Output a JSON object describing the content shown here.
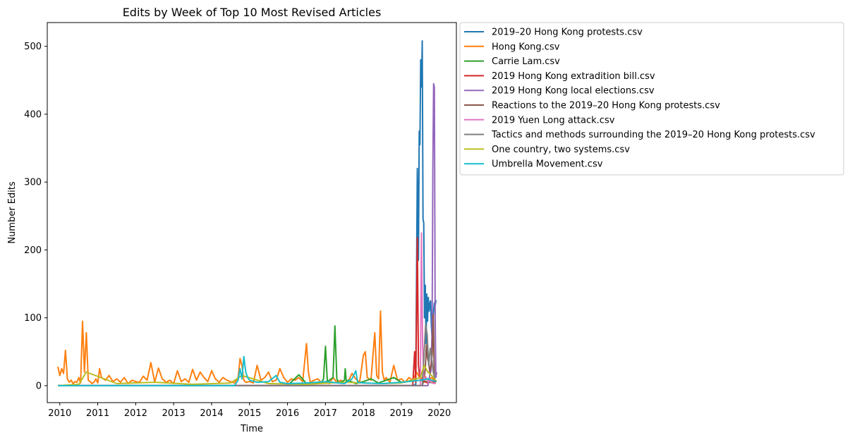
{
  "chart_data": {
    "type": "line",
    "title": "Edits by Week of Top 10 Most Revised Articles",
    "xlabel": "Time",
    "ylabel": "Number Edits",
    "xlim": [
      2009.67,
      2020.45
    ],
    "ylim": [
      -25,
      535
    ],
    "x_ticks": [
      2010,
      2011,
      2012,
      2013,
      2014,
      2015,
      2016,
      2017,
      2018,
      2019,
      2020
    ],
    "y_ticks": [
      0,
      100,
      200,
      300,
      400,
      500
    ],
    "grid": false,
    "legend_position": "outside-right",
    "series": [
      {
        "name": "2019–20 Hong Kong protests.csv",
        "color": "#1f77b4",
        "x": [
          2019.3,
          2019.38,
          2019.42,
          2019.45,
          2019.47,
          2019.49,
          2019.51,
          2019.53,
          2019.55,
          2019.57,
          2019.59,
          2019.61,
          2019.63,
          2019.65,
          2019.67,
          2019.69,
          2019.71,
          2019.73,
          2019.75,
          2019.77,
          2019.79,
          2019.81,
          2019.83,
          2019.85,
          2019.87,
          2019.89,
          2019.91,
          2019.93
        ],
        "y": [
          0,
          2,
          320,
          185,
          375,
          355,
          480,
          440,
          508,
          245,
          240,
          100,
          148,
          62,
          135,
          95,
          130,
          110,
          120,
          125,
          88,
          70,
          95,
          110,
          122,
          118,
          125,
          125
        ]
      },
      {
        "name": "Hong Kong.csv",
        "color": "#ff7f0e",
        "x": [
          2009.95,
          2010.0,
          2010.05,
          2010.1,
          2010.15,
          2010.2,
          2010.25,
          2010.3,
          2010.35,
          2010.4,
          2010.45,
          2010.5,
          2010.55,
          2010.6,
          2010.65,
          2010.7,
          2010.75,
          2010.8,
          2010.85,
          2010.9,
          2010.95,
          2011.0,
          2011.05,
          2011.1,
          2011.2,
          2011.3,
          2011.4,
          2011.5,
          2011.6,
          2011.7,
          2011.8,
          2011.9,
          2012.0,
          2012.1,
          2012.2,
          2012.3,
          2012.4,
          2012.5,
          2012.6,
          2012.7,
          2012.8,
          2012.9,
          2013.0,
          2013.1,
          2013.2,
          2013.3,
          2013.4,
          2013.5,
          2013.6,
          2013.7,
          2013.8,
          2013.9,
          2014.0,
          2014.1,
          2014.2,
          2014.3,
          2014.4,
          2014.5,
          2014.6,
          2014.7,
          2014.75,
          2014.8,
          2014.85,
          2014.9,
          2015.0,
          2015.1,
          2015.2,
          2015.3,
          2015.4,
          2015.5,
          2015.6,
          2015.7,
          2015.8,
          2015.9,
          2016.0,
          2016.1,
          2016.2,
          2016.3,
          2016.4,
          2016.5,
          2016.55,
          2016.6,
          2016.7,
          2016.8,
          2016.9,
          2017.0,
          2017.1,
          2017.2,
          2017.3,
          2017.4,
          2017.5,
          2017.6,
          2017.7,
          2017.8,
          2017.9,
          2018.0,
          2018.05,
          2018.1,
          2018.2,
          2018.3,
          2018.35,
          2018.4,
          2018.45,
          2018.5,
          2018.55,
          2018.6,
          2018.7,
          2018.8,
          2018.9,
          2019.0,
          2019.1,
          2019.2,
          2019.3,
          2019.4,
          2019.5,
          2019.6,
          2019.7,
          2019.8,
          2019.9
        ],
        "y": [
          28,
          15,
          25,
          18,
          52,
          10,
          5,
          8,
          3,
          6,
          5,
          12,
          4,
          95,
          20,
          78,
          8,
          6,
          3,
          5,
          10,
          4,
          25,
          12,
          8,
          15,
          6,
          10,
          5,
          12,
          3,
          8,
          6,
          5,
          14,
          8,
          34,
          5,
          26,
          10,
          5,
          8,
          3,
          22,
          6,
          10,
          5,
          24,
          8,
          20,
          12,
          6,
          22,
          10,
          5,
          12,
          8,
          6,
          4,
          12,
          40,
          30,
          8,
          5,
          6,
          4,
          30,
          8,
          12,
          20,
          6,
          8,
          25,
          12,
          5,
          10,
          8,
          12,
          6,
          62,
          20,
          5,
          8,
          10,
          4,
          6,
          3,
          12,
          5,
          8,
          4,
          6,
          18,
          10,
          5,
          45,
          50,
          12,
          8,
          78,
          15,
          10,
          110,
          20,
          8,
          12,
          5,
          30,
          8,
          10,
          5,
          12,
          8,
          20,
          10,
          15,
          8,
          12,
          6
        ]
      },
      {
        "name": "Carrie Lam.csv",
        "color": "#2ca02c",
        "x": [
          2009.95,
          2014.0,
          2016.0,
          2016.3,
          2016.5,
          2016.9,
          2016.95,
          2017.0,
          2017.05,
          2017.1,
          2017.2,
          2017.25,
          2017.3,
          2017.35,
          2017.5,
          2017.52,
          2017.55,
          2017.6,
          2017.8,
          2018.0,
          2018.2,
          2018.4,
          2018.6,
          2018.8,
          2019.0,
          2019.5,
          2019.9
        ],
        "y": [
          0,
          0,
          0,
          16,
          3,
          5,
          10,
          58,
          5,
          8,
          12,
          88,
          10,
          4,
          8,
          25,
          5,
          8,
          3,
          6,
          10,
          4,
          8,
          12,
          5,
          8,
          3
        ]
      },
      {
        "name": "2019 Hong Kong extradition bill.csv",
        "color": "#d62728",
        "x": [
          2009.95,
          2019.3,
          2019.35,
          2019.38,
          2019.42,
          2019.45,
          2019.48,
          2019.52,
          2019.56,
          2019.6,
          2019.7,
          2019.8,
          2019.9
        ],
        "y": [
          0,
          0,
          50,
          5,
          218,
          30,
          15,
          8,
          10,
          6,
          4,
          8,
          3
        ]
      },
      {
        "name": "2019 Hong Kong local elections.csv",
        "color": "#9467bd",
        "x": [
          2009.95,
          2019.7,
          2019.75,
          2019.78,
          2019.81,
          2019.83,
          2019.85,
          2019.87,
          2019.89,
          2019.91,
          2019.93
        ],
        "y": [
          0,
          0,
          15,
          22,
          85,
          318,
          445,
          440,
          100,
          12,
          20
        ]
      },
      {
        "name": "Reactions to the 2019–20 Hong Kong protests.csv",
        "color": "#8c564b",
        "x": [
          2009.95,
          2019.55,
          2019.6,
          2019.63,
          2019.66,
          2019.69,
          2019.72,
          2019.75,
          2019.78,
          2019.81,
          2019.84,
          2019.87,
          2019.9
        ],
        "y": [
          0,
          0,
          10,
          25,
          60,
          40,
          35,
          20,
          30,
          45,
          105,
          8,
          6
        ]
      },
      {
        "name": "2019 Yuen Long attack.csv",
        "color": "#e377c2",
        "x": [
          2009.95,
          2019.5,
          2019.53,
          2019.56,
          2019.59,
          2019.62,
          2019.66,
          2019.7,
          2019.75,
          2019.8,
          2019.9
        ],
        "y": [
          0,
          0,
          225,
          60,
          15,
          8,
          12,
          5,
          8,
          4,
          3
        ]
      },
      {
        "name": "Tactics and methods surrounding the 2019–20 Hong Kong protests.csv",
        "color": "#7f7f7f",
        "x": [
          2009.95,
          2019.55,
          2019.6,
          2019.64,
          2019.68,
          2019.72,
          2019.76,
          2019.8,
          2019.84,
          2019.88,
          2019.92
        ],
        "y": [
          0,
          0,
          50,
          90,
          75,
          30,
          55,
          40,
          20,
          10,
          5
        ]
      },
      {
        "name": "One country, two systems.csv",
        "color": "#bcbd22",
        "x": [
          2009.95,
          2010.5,
          2010.7,
          2011.5,
          2012.5,
          2013.5,
          2014.5,
          2014.8,
          2015.5,
          2016.5,
          2017.5,
          2018.5,
          2019.0,
          2019.5,
          2019.6,
          2019.7,
          2019.8,
          2019.9
        ],
        "y": [
          0,
          2,
          20,
          3,
          5,
          2,
          4,
          15,
          3,
          2,
          5,
          3,
          4,
          12,
          30,
          20,
          15,
          8
        ]
      },
      {
        "name": "Umbrella Movement.csv",
        "color": "#17becf",
        "x": [
          2009.95,
          2014.6,
          2014.7,
          2014.75,
          2014.8,
          2014.85,
          2014.9,
          2014.95,
          2015.0,
          2015.2,
          2015.5,
          2015.7,
          2015.8,
          2016.0,
          2016.5,
          2017.0,
          2017.5,
          2017.7,
          2017.8,
          2017.85,
          2018.0,
          2018.5,
          2019.0,
          2019.5,
          2019.7,
          2019.9
        ],
        "y": [
          0,
          0,
          8,
          25,
          10,
          43,
          20,
          12,
          8,
          5,
          6,
          15,
          5,
          3,
          4,
          6,
          3,
          10,
          22,
          5,
          4,
          3,
          5,
          8,
          10,
          6
        ]
      }
    ]
  }
}
